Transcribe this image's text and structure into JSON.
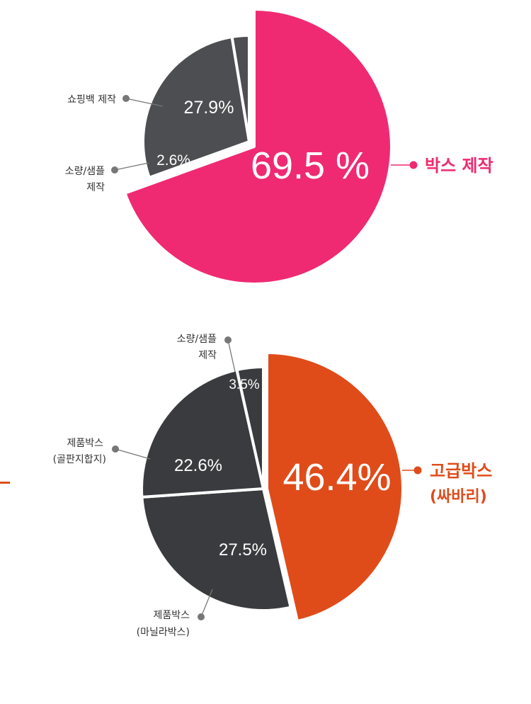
{
  "chart_data": [
    {
      "type": "pie",
      "title": "",
      "categories": [
        "박스 제작",
        "쇼핑백 제작",
        "소량/샘플 제작"
      ],
      "values": [
        69.5,
        27.9,
        2.6
      ],
      "value_labels": [
        "69.5 %",
        "27.9%",
        "2.6%"
      ],
      "colors": [
        "#ef2a72",
        "#4d4e51",
        "#4d4e51"
      ],
      "exploded": [
        "박스 제작"
      ],
      "legend": "callouts"
    },
    {
      "type": "pie",
      "title": "",
      "categories": [
        "고급박스 (싸바리)",
        "제품박스 (마닐라박스)",
        "제품박스 (골판지합지)",
        "소량/샘플 제작"
      ],
      "values": [
        46.4,
        27.5,
        22.6,
        3.5
      ],
      "value_labels": [
        "46.4%",
        "27.5%",
        "22.6%",
        "3.5%"
      ],
      "colors": [
        "#e04b1a",
        "#3a3b3e",
        "#3a3b3e",
        "#3a3b3e"
      ],
      "exploded": [
        "고급박스 (싸바리)"
      ],
      "legend": "callouts"
    }
  ],
  "callouts": {
    "chart1": {
      "box": "박스 제작",
      "shopping_bag": "쇼핑백 제작",
      "sample_line1": "소량/샘플",
      "sample_line2": "제작"
    },
    "chart2": {
      "luxury_line1": "고급박스",
      "luxury_line2": "(싸바리)",
      "manila_line1": "제품박스",
      "manila_line2": "(마닐라박스)",
      "corrugated_line1": "제품박스",
      "corrugated_line2": "(골판지합지)",
      "sample_line1": "소량/샘플",
      "sample_line2": "제작"
    }
  }
}
